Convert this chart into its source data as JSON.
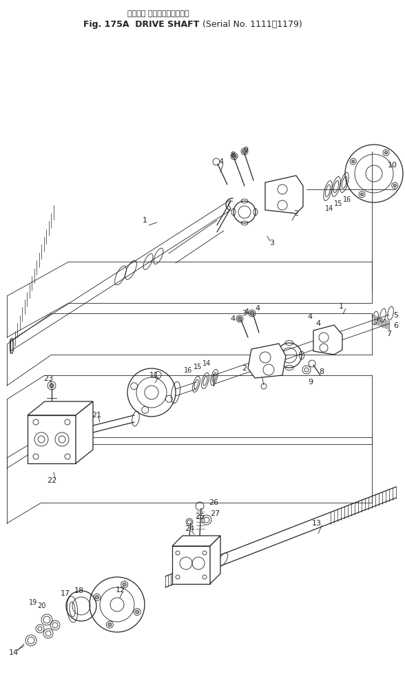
{
  "title_line1": "ドライブ シャフト（適用号機",
  "title_line2": "Fig. 175A  DRIVE SHAFT （Serial No. 1111～1179）",
  "title2_normal": "Fig. 175A  DRIVE SHAFT ",
  "title2_paren": "(Serial No. 1111～1179)",
  "bg_color": "#ffffff",
  "ink_color": "#222222",
  "fig_width": 5.88,
  "fig_height": 9.89,
  "dpi": 100
}
